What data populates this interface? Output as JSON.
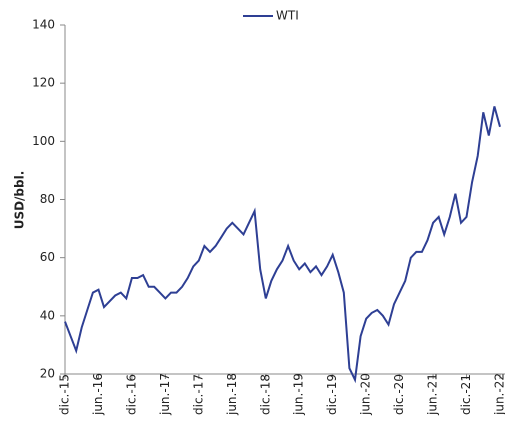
{
  "chart_data": {
    "type": "line",
    "y_label": "USD/bbl.",
    "categories": [
      "dic.-15",
      null,
      null,
      null,
      null,
      null,
      "jun.-16",
      null,
      null,
      null,
      null,
      null,
      "dic.-16",
      null,
      null,
      null,
      null,
      null,
      "jun.-17",
      null,
      null,
      null,
      null,
      null,
      "dic.-17",
      null,
      null,
      null,
      null,
      null,
      "jun.-18",
      null,
      null,
      null,
      null,
      null,
      "dic.-18",
      null,
      null,
      null,
      null,
      null,
      "jun.-19",
      null,
      null,
      null,
      null,
      null,
      "dic.-19",
      null,
      null,
      null,
      null,
      null,
      "jun.-20",
      null,
      null,
      null,
      null,
      null,
      "dic.-20",
      null,
      null,
      null,
      null,
      null,
      "jun.-21",
      null,
      null,
      null,
      null,
      null,
      "dic.-21",
      null,
      null,
      null,
      null,
      null,
      "jun.-22"
    ],
    "series": [
      {
        "name": "WTI",
        "color": "#2e3f94",
        "values": [
          38,
          33,
          28,
          36,
          42,
          48,
          49,
          43,
          45,
          47,
          48,
          46,
          53,
          53,
          54,
          50,
          50,
          48,
          46,
          48,
          48,
          50,
          53,
          57,
          59,
          64,
          62,
          64,
          67,
          70,
          72,
          70,
          68,
          72,
          76,
          56,
          46,
          52,
          56,
          59,
          64,
          59,
          56,
          58,
          55,
          57,
          54,
          57,
          61,
          55,
          48,
          22,
          18,
          33,
          39,
          41,
          42,
          40,
          37,
          44,
          48,
          52,
          60,
          62,
          62,
          66,
          72,
          74,
          68,
          74,
          82,
          72,
          74,
          86,
          95,
          110,
          102,
          112,
          105
        ]
      }
    ],
    "ylim": [
      20,
      140
    ],
    "yticks": [
      20,
      40,
      60,
      80,
      100,
      120,
      140
    ],
    "legend": "top"
  }
}
